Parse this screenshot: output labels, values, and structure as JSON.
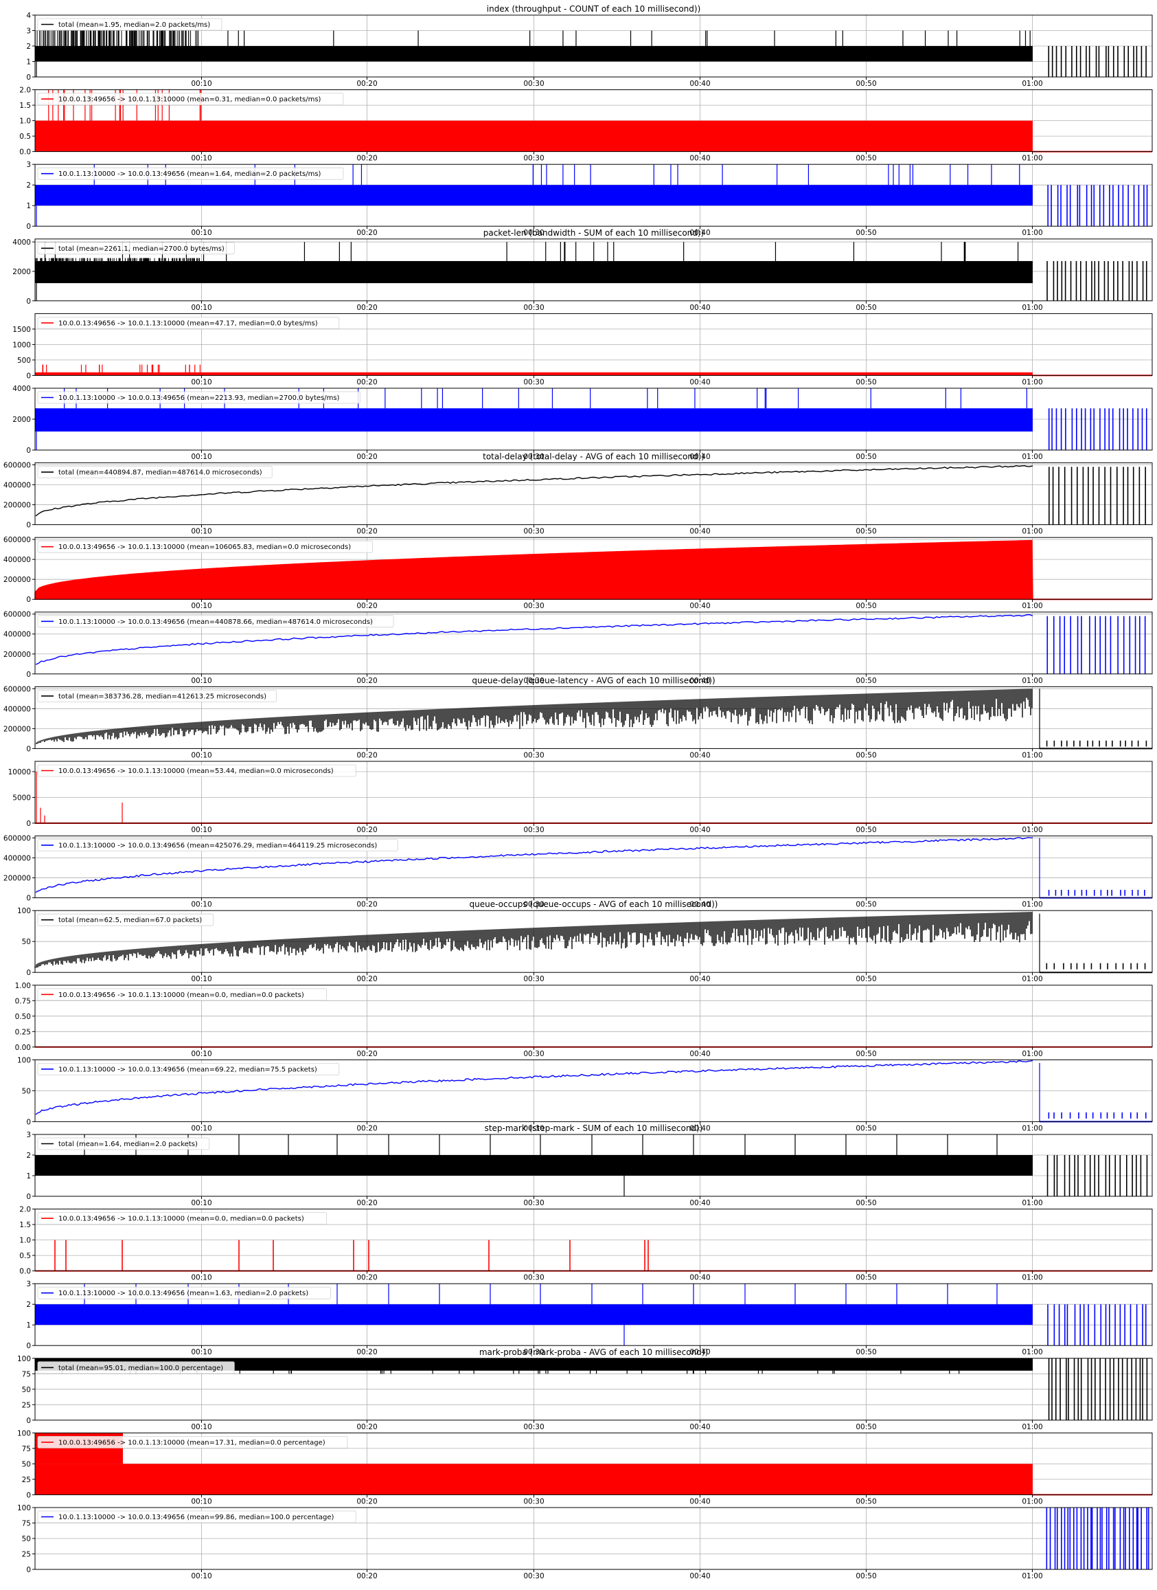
{
  "colors": {
    "total": "#000000",
    "uplink": "#ff0000",
    "downlink": "#0000ff",
    "grid": "#b0b0b0"
  },
  "x_ticks": [
    "00:10",
    "00:20",
    "00:30",
    "00:40",
    "00:50",
    "01:00"
  ],
  "chart_data": [
    {
      "title": "index (throughput - COUNT of each 10 millisecond))",
      "panels": [
        {
          "type": "area",
          "series": "total",
          "legend": "total (mean=1.95, median=2.0 packets/ms)",
          "ylim": [
            0,
            4
          ],
          "yticks": [
            "0",
            "1",
            "2",
            "3",
            "4"
          ],
          "color": "#000000",
          "stats": {
            "mean": 1.95,
            "median": 2.0,
            "unit": "packets/ms"
          }
        },
        {
          "type": "area",
          "series": "10.0.0.13:49656 -> 10.0.1.13:10000",
          "legend": "10.0.0.13:49656 -> 10.0.1.13:10000 (mean=0.31, median=0.0 packets/ms)",
          "ylim": [
            0,
            2
          ],
          "yticks": [
            "0.0",
            "0.5",
            "1.0",
            "1.5",
            "2.0"
          ],
          "color": "#ff0000",
          "stats": {
            "mean": 0.31,
            "median": 0.0,
            "unit": "packets/ms"
          }
        },
        {
          "type": "area",
          "series": "10.0.1.13:10000 -> 10.0.0.13:49656",
          "legend": "10.0.1.13:10000 -> 10.0.0.13:49656 (mean=1.64, median=2.0 packets/ms)",
          "ylim": [
            0,
            3
          ],
          "yticks": [
            "0",
            "1",
            "2",
            "3"
          ],
          "color": "#0000ff",
          "stats": {
            "mean": 1.64,
            "median": 2.0,
            "unit": "packets/ms"
          }
        }
      ]
    },
    {
      "title": "packet-len (bandwidth - SUM of each 10 millisecond))",
      "panels": [
        {
          "type": "area",
          "series": "total",
          "legend": "total (mean=2261.1, median=2700.0 bytes/ms)",
          "ylim": [
            0,
            4200
          ],
          "yticks": [
            "0",
            "2000",
            "4000"
          ],
          "color": "#000000",
          "stats": {
            "mean": 2261.1,
            "median": 2700.0,
            "unit": "bytes/ms"
          }
        },
        {
          "type": "area",
          "series": "10.0.0.13:49656 -> 10.0.1.13:10000",
          "legend": "10.0.0.13:49656 -> 10.0.1.13:10000 (mean=47.17, median=0.0 bytes/ms)",
          "ylim": [
            0,
            2000
          ],
          "yticks": [
            "0",
            "500",
            "1000",
            "1500"
          ],
          "color": "#ff0000",
          "stats": {
            "mean": 47.17,
            "median": 0.0,
            "unit": "bytes/ms"
          }
        },
        {
          "type": "area",
          "series": "10.0.1.13:10000 -> 10.0.0.13:49656",
          "legend": "10.0.1.13:10000 -> 10.0.0.13:49656 (mean=2213.93, median=2700.0 bytes/ms)",
          "ylim": [
            0,
            4000
          ],
          "yticks": [
            "0",
            "2000",
            "4000"
          ],
          "color": "#0000ff",
          "stats": {
            "mean": 2213.93,
            "median": 2700.0,
            "unit": "bytes/ms"
          }
        }
      ]
    },
    {
      "title": "total-delay (total-delay - AVG of each 10 millisecond))",
      "panels": [
        {
          "type": "line",
          "series": "total",
          "legend": "total (mean=440894.87, median=487614.0 microseconds)",
          "ylim": [
            0,
            620000
          ],
          "yticks": [
            "0",
            "200000",
            "400000",
            "600000"
          ],
          "color": "#000000",
          "stats": {
            "mean": 440894.87,
            "median": 487614.0,
            "unit": "microseconds"
          }
        },
        {
          "type": "area",
          "series": "10.0.0.13:49656 -> 10.0.1.13:10000",
          "legend": "10.0.0.13:49656 -> 10.0.1.13:10000 (mean=106065.83, median=0.0 microseconds)",
          "ylim": [
            0,
            620000
          ],
          "yticks": [
            "0",
            "200000",
            "400000",
            "600000"
          ],
          "color": "#ff0000",
          "stats": {
            "mean": 106065.83,
            "median": 0.0,
            "unit": "microseconds"
          }
        },
        {
          "type": "line",
          "series": "10.0.1.13:10000 -> 10.0.0.13:49656",
          "legend": "10.0.1.13:10000 -> 10.0.0.13:49656 (mean=440878.66, median=487614.0 microseconds)",
          "ylim": [
            0,
            620000
          ],
          "yticks": [
            "0",
            "200000",
            "400000",
            "600000"
          ],
          "color": "#0000ff",
          "stats": {
            "mean": 440878.66,
            "median": 487614.0,
            "unit": "microseconds"
          }
        }
      ]
    },
    {
      "title": "queue-delay (queue-latency - AVG of each 10 millisecond))",
      "panels": [
        {
          "type": "line",
          "series": "total",
          "legend": "total (mean=383736.28, median=412613.25 microseconds)",
          "ylim": [
            0,
            620000
          ],
          "yticks": [
            "0",
            "200000",
            "400000",
            "600000"
          ],
          "color": "#000000",
          "stats": {
            "mean": 383736.28,
            "median": 412613.25,
            "unit": "microseconds"
          }
        },
        {
          "type": "line",
          "series": "10.0.0.13:49656 -> 10.0.1.13:10000",
          "legend": "10.0.0.13:49656 -> 10.0.1.13:10000 (mean=53.44, median=0.0 microseconds)",
          "ylim": [
            0,
            12000
          ],
          "yticks": [
            "0",
            "5000",
            "10000"
          ],
          "color": "#ff0000",
          "stats": {
            "mean": 53.44,
            "median": 0.0,
            "unit": "microseconds"
          }
        },
        {
          "type": "line",
          "series": "10.0.1.13:10000 -> 10.0.0.13:49656",
          "legend": "10.0.1.13:10000 -> 10.0.0.13:49656 (mean=425076.29, median=464119.25 microseconds)",
          "ylim": [
            0,
            620000
          ],
          "yticks": [
            "0",
            "200000",
            "400000",
            "600000"
          ],
          "color": "#0000ff",
          "stats": {
            "mean": 425076.29,
            "median": 464119.25,
            "unit": "microseconds"
          }
        }
      ]
    },
    {
      "title": "queue-occups (queue-occups - AVG of each 10 millisecond))",
      "panels": [
        {
          "type": "line",
          "series": "total",
          "legend": "total (mean=62.5, median=67.0 packets)",
          "ylim": [
            0,
            100
          ],
          "yticks": [
            "0",
            "50",
            "100"
          ],
          "color": "#000000",
          "stats": {
            "mean": 62.5,
            "median": 67.0,
            "unit": "packets"
          }
        },
        {
          "type": "line",
          "series": "10.0.0.13:49656 -> 10.0.1.13:10000",
          "legend": "10.0.0.13:49656 -> 10.0.1.13:10000 (mean=0.0, median=0.0 packets)",
          "ylim": [
            0,
            1
          ],
          "yticks": [
            "0.00",
            "0.25",
            "0.50",
            "0.75",
            "1.00"
          ],
          "color": "#ff0000",
          "stats": {
            "mean": 0.0,
            "median": 0.0,
            "unit": "packets"
          }
        },
        {
          "type": "line",
          "series": "10.0.1.13:10000 -> 10.0.0.13:49656",
          "legend": "10.0.1.13:10000 -> 10.0.0.13:49656 (mean=69.22, median=75.5 packets)",
          "ylim": [
            0,
            100
          ],
          "yticks": [
            "0",
            "50",
            "100"
          ],
          "color": "#0000ff",
          "stats": {
            "mean": 69.22,
            "median": 75.5,
            "unit": "packets"
          }
        }
      ]
    },
    {
      "title": "step-mark (step-mark - SUM of each 10 millisecond))",
      "panels": [
        {
          "type": "area",
          "series": "total",
          "legend": "total (mean=1.64, median=2.0 packets)",
          "ylim": [
            0,
            3
          ],
          "yticks": [
            "0",
            "1",
            "2",
            "3"
          ],
          "color": "#000000",
          "stats": {
            "mean": 1.64,
            "median": 2.0,
            "unit": "packets"
          }
        },
        {
          "type": "line",
          "series": "10.0.0.13:49656 -> 10.0.1.13:10000",
          "legend": "10.0.0.13:49656 -> 10.0.1.13:10000 (mean=0.0, median=0.0 packets)",
          "ylim": [
            0,
            2
          ],
          "yticks": [
            "0.0",
            "0.5",
            "1.0",
            "1.5",
            "2.0"
          ],
          "color": "#ff0000",
          "stats": {
            "mean": 0.0,
            "median": 0.0,
            "unit": "packets"
          }
        },
        {
          "type": "area",
          "series": "10.0.1.13:10000 -> 10.0.0.13:49656",
          "legend": "10.0.1.13:10000 -> 10.0.0.13:49656 (mean=1.63, median=2.0 packets)",
          "ylim": [
            0,
            3
          ],
          "yticks": [
            "0",
            "1",
            "2",
            "3"
          ],
          "color": "#0000ff",
          "stats": {
            "mean": 1.63,
            "median": 2.0,
            "unit": "packets"
          }
        }
      ]
    },
    {
      "title": "mark-proba (mark-proba - AVG of each 10 millisecond))",
      "panels": [
        {
          "type": "area",
          "series": "total",
          "legend": "total (mean=95.01, median=100.0 percentage)",
          "ylim": [
            0,
            100
          ],
          "yticks": [
            "0",
            "25",
            "50",
            "75",
            "100"
          ],
          "color": "#000000",
          "stats": {
            "mean": 95.01,
            "median": 100.0,
            "unit": "percentage"
          }
        },
        {
          "type": "area",
          "series": "10.0.0.13:49656 -> 10.0.1.13:10000",
          "legend": "10.0.0.13:49656 -> 10.0.1.13:10000 (mean=17.31, median=0.0 percentage)",
          "ylim": [
            0,
            100
          ],
          "yticks": [
            "0",
            "25",
            "50",
            "75",
            "100"
          ],
          "color": "#ff0000",
          "stats": {
            "mean": 17.31,
            "median": 0.0,
            "unit": "percentage"
          }
        },
        {
          "type": "area",
          "series": "10.0.1.13:10000 -> 10.0.0.13:49656",
          "legend": "10.0.1.13:10000 -> 10.0.0.13:49656 (mean=99.86, median=100.0 percentage)",
          "ylim": [
            0,
            100
          ],
          "yticks": [
            "0",
            "25",
            "50",
            "75",
            "100"
          ],
          "color": "#0000ff",
          "stats": {
            "mean": 99.86,
            "median": 100.0,
            "unit": "percentage"
          }
        }
      ]
    }
  ]
}
